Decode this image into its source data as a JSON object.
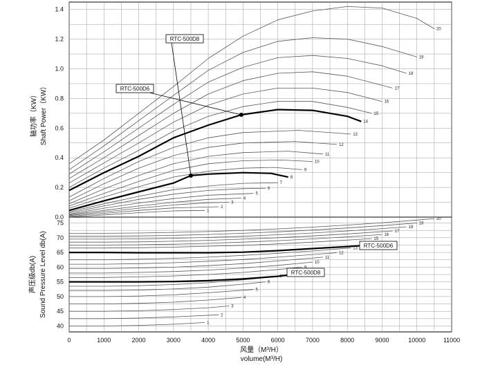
{
  "chart_data": [
    {
      "type": "line",
      "title": "",
      "ylabel": "轴功率（KW）",
      "ylabel2": "Shaft Power（KW）",
      "xlim": [
        0,
        11000
      ],
      "ylim": [
        0,
        1.45
      ],
      "yticks": [
        0.0,
        0.2,
        0.4,
        0.6,
        0.8,
        1.0,
        1.2,
        1.4
      ],
      "yticklabels": [
        "0.0",
        "0.2",
        "0.4",
        "0.6",
        "0.8",
        "1.0",
        "1.2",
        "1.4"
      ],
      "grid": true,
      "highlight": [
        "8",
        "14"
      ],
      "callouts": [
        {
          "text": "RTC-500D8",
          "point": [
            3500,
            0.28
          ]
        },
        {
          "text": "RTC-500D6",
          "point": [
            4950,
            0.69
          ]
        }
      ],
      "series": [
        {
          "name": "1",
          "x": [
            0,
            1000,
            2000,
            3000,
            3900
          ],
          "y": [
            0.0,
            0.015,
            0.03,
            0.042,
            0.045
          ]
        },
        {
          "name": "2",
          "x": [
            0,
            1000,
            2000,
            3000,
            4300
          ],
          "y": [
            0.005,
            0.025,
            0.045,
            0.062,
            0.07
          ]
        },
        {
          "name": "3",
          "x": [
            0,
            1000,
            2000,
            3000,
            4000,
            4600
          ],
          "y": [
            0.01,
            0.035,
            0.06,
            0.082,
            0.097,
            0.1
          ]
        },
        {
          "name": "4",
          "x": [
            0,
            1000,
            2000,
            3000,
            4000,
            4950
          ],
          "y": [
            0.015,
            0.045,
            0.075,
            0.1,
            0.12,
            0.128
          ]
        },
        {
          "name": "5",
          "x": [
            0,
            1000,
            2000,
            3000,
            4000,
            5300
          ],
          "y": [
            0.02,
            0.06,
            0.095,
            0.125,
            0.148,
            0.16
          ]
        },
        {
          "name": "6",
          "x": [
            0,
            1000,
            2000,
            3000,
            4000,
            5000,
            5650
          ],
          "y": [
            0.028,
            0.075,
            0.12,
            0.155,
            0.18,
            0.192,
            0.195
          ]
        },
        {
          "name": "7",
          "x": [
            0,
            1000,
            2000,
            3000,
            4000,
            5000,
            6000
          ],
          "y": [
            0.035,
            0.09,
            0.14,
            0.185,
            0.21,
            0.228,
            0.232
          ]
        },
        {
          "name": "8",
          "x": [
            0,
            1000,
            2000,
            3000,
            3500,
            4000,
            5000,
            5800,
            6300
          ],
          "y": [
            0.045,
            0.11,
            0.17,
            0.23,
            0.28,
            0.29,
            0.3,
            0.295,
            0.27
          ]
        },
        {
          "name": "9",
          "x": [
            0,
            1000,
            2000,
            3000,
            4000,
            5000,
            5900,
            6700
          ],
          "y": [
            0.06,
            0.135,
            0.205,
            0.27,
            0.31,
            0.33,
            0.335,
            0.32
          ]
        },
        {
          "name": "10",
          "x": [
            0,
            1000,
            2000,
            3000,
            4000,
            5000,
            6100,
            7000
          ],
          "y": [
            0.075,
            0.16,
            0.24,
            0.315,
            0.36,
            0.38,
            0.385,
            0.375
          ]
        },
        {
          "name": "11",
          "x": [
            0,
            1000,
            2000,
            3000,
            4000,
            5000,
            6300,
            7300
          ],
          "y": [
            0.09,
            0.19,
            0.28,
            0.36,
            0.41,
            0.435,
            0.445,
            0.425
          ]
        },
        {
          "name": "12",
          "x": [
            0,
            1000,
            2000,
            3000,
            4000,
            5000,
            6500,
            7700
          ],
          "y": [
            0.11,
            0.225,
            0.33,
            0.415,
            0.47,
            0.5,
            0.51,
            0.49
          ]
        },
        {
          "name": "13",
          "x": [
            0,
            1000,
            2000,
            3000,
            4000,
            5000,
            6600,
            8100
          ],
          "y": [
            0.135,
            0.26,
            0.375,
            0.47,
            0.535,
            0.57,
            0.585,
            0.56
          ]
        },
        {
          "name": "14",
          "x": [
            0,
            1000,
            2000,
            3000,
            4000,
            4950,
            6000,
            7000,
            8000,
            8400
          ],
          "y": [
            0.18,
            0.3,
            0.41,
            0.535,
            0.62,
            0.69,
            0.725,
            0.72,
            0.68,
            0.645
          ]
        },
        {
          "name": "15",
          "x": [
            0,
            1000,
            2000,
            3000,
            4000,
            5000,
            6000,
            7000,
            8000,
            8700
          ],
          "y": [
            0.2,
            0.33,
            0.45,
            0.58,
            0.68,
            0.745,
            0.78,
            0.78,
            0.74,
            0.7
          ]
        },
        {
          "name": "16",
          "x": [
            0,
            1000,
            2000,
            3000,
            4000,
            5000,
            6000,
            7000,
            8000,
            9000
          ],
          "y": [
            0.23,
            0.365,
            0.5,
            0.64,
            0.755,
            0.83,
            0.87,
            0.87,
            0.84,
            0.78
          ]
        },
        {
          "name": "17",
          "x": [
            0,
            1000,
            2000,
            3000,
            4000,
            5000,
            6000,
            7000,
            8000,
            9300
          ],
          "y": [
            0.26,
            0.4,
            0.55,
            0.7,
            0.83,
            0.92,
            0.97,
            0.98,
            0.95,
            0.87
          ]
        },
        {
          "name": "18",
          "x": [
            0,
            1000,
            2000,
            3000,
            4000,
            5000,
            6000,
            7000,
            8000,
            9000,
            9700
          ],
          "y": [
            0.29,
            0.44,
            0.6,
            0.76,
            0.91,
            1.01,
            1.075,
            1.09,
            1.07,
            1.02,
            0.97
          ]
        },
        {
          "name": "19",
          "x": [
            0,
            1000,
            2000,
            3000,
            4000,
            5000,
            6000,
            7000,
            8000,
            9000,
            10000
          ],
          "y": [
            0.32,
            0.48,
            0.65,
            0.82,
            0.99,
            1.11,
            1.185,
            1.21,
            1.2,
            1.15,
            1.08
          ]
        },
        {
          "name": "20",
          "x": [
            0,
            1000,
            2000,
            3000,
            4000,
            5000,
            6000,
            7000,
            8000,
            9000,
            10000,
            10500
          ],
          "y": [
            0.36,
            0.52,
            0.7,
            0.88,
            1.07,
            1.22,
            1.33,
            1.39,
            1.42,
            1.41,
            1.34,
            1.27
          ]
        }
      ]
    },
    {
      "type": "line",
      "title": "",
      "xlabel": "风量（M³/H）",
      "xlabel2": "volume(M³/H)",
      "ylabel": "声压级db(A)",
      "ylabel2": "Sound Pressure Level db(A)",
      "xlim": [
        0,
        11000
      ],
      "ylim": [
        38,
        77
      ],
      "xticks": [
        0,
        1000,
        2000,
        3000,
        4000,
        5000,
        6000,
        7000,
        8000,
        9000,
        10000,
        11000
      ],
      "xticklabels": [
        "0",
        "1000",
        "2000",
        "3000",
        "4000",
        "5000",
        "6000",
        "7000",
        "8000",
        "9000",
        "10000",
        "11000"
      ],
      "yticks": [
        40,
        45,
        50,
        55,
        60,
        65,
        70,
        75
      ],
      "yticklabels": [
        "40",
        "45",
        "50",
        "55",
        "60",
        "65",
        "70",
        "75"
      ],
      "grid": true,
      "highlight": [
        "8",
        "14"
      ],
      "callouts": [
        {
          "text": "RTC-500D6",
          "point": [
            8400,
            67.3
          ]
        },
        {
          "text": "RTC-500D8",
          "point": [
            6300,
            57.3
          ]
        }
      ],
      "series": [
        {
          "name": "1",
          "x": [
            0,
            1000,
            2000,
            3000,
            3900
          ],
          "y": [
            40.0,
            40.0,
            40.2,
            40.6,
            41.2
          ]
        },
        {
          "name": "2",
          "x": [
            0,
            1000,
            2000,
            3000,
            4300
          ],
          "y": [
            42.5,
            42.5,
            42.7,
            43.1,
            43.8
          ]
        },
        {
          "name": "3",
          "x": [
            0,
            1000,
            2000,
            3000,
            4000,
            4600
          ],
          "y": [
            45.0,
            45.0,
            45.2,
            45.6,
            46.2,
            46.8
          ]
        },
        {
          "name": "4",
          "x": [
            0,
            1000,
            2000,
            3000,
            4000,
            4950
          ],
          "y": [
            47.5,
            47.5,
            47.7,
            48.1,
            48.8,
            49.7
          ]
        },
        {
          "name": "5",
          "x": [
            0,
            1000,
            2000,
            3000,
            4000,
            5300
          ],
          "y": [
            50.0,
            50.0,
            50.2,
            50.6,
            51.3,
            52.4
          ]
        },
        {
          "name": "6",
          "x": [
            0,
            1000,
            2000,
            3000,
            4000,
            5000,
            5650
          ],
          "y": [
            52.0,
            52.0,
            52.2,
            52.6,
            53.2,
            54.2,
            55.0
          ]
        },
        {
          "name": "7",
          "x": [
            0,
            1000,
            2000,
            3000,
            4000,
            5000,
            6000
          ],
          "y": [
            53.5,
            53.5,
            53.7,
            54.1,
            54.7,
            55.7,
            56.8
          ]
        },
        {
          "name": "8",
          "x": [
            0,
            1000,
            2000,
            3000,
            4000,
            5000,
            6000,
            6300
          ],
          "y": [
            55.0,
            55.0,
            55.0,
            55.1,
            55.4,
            56.0,
            56.9,
            57.3
          ]
        },
        {
          "name": "9",
          "x": [
            0,
            1000,
            2000,
            3000,
            4000,
            5000,
            6000,
            6700
          ],
          "y": [
            56.5,
            56.5,
            56.7,
            57.0,
            57.5,
            58.2,
            59.2,
            60.0
          ]
        },
        {
          "name": "10",
          "x": [
            0,
            1000,
            2000,
            3000,
            4000,
            5000,
            6000,
            7000
          ],
          "y": [
            58.0,
            58.0,
            58.2,
            58.5,
            59.0,
            59.7,
            60.6,
            61.7
          ]
        },
        {
          "name": "11",
          "x": [
            0,
            1000,
            2000,
            3000,
            4000,
            5000,
            6000,
            7300
          ],
          "y": [
            59.5,
            59.5,
            59.7,
            60.0,
            60.5,
            61.2,
            62.1,
            63.4
          ]
        },
        {
          "name": "12",
          "x": [
            0,
            1000,
            2000,
            3000,
            4000,
            5000,
            6000,
            7700
          ],
          "y": [
            61.0,
            61.0,
            61.2,
            61.5,
            62.0,
            62.6,
            63.4,
            64.9
          ]
        },
        {
          "name": "13",
          "x": [
            0,
            1000,
            2000,
            3000,
            4000,
            5000,
            6000,
            7000,
            8100
          ],
          "y": [
            62.5,
            62.5,
            62.7,
            63.0,
            63.4,
            64.0,
            64.7,
            65.5,
            66.5
          ]
        },
        {
          "name": "14",
          "x": [
            0,
            1000,
            2000,
            3000,
            4000,
            5000,
            6000,
            7000,
            8000,
            8400
          ],
          "y": [
            65.0,
            65.0,
            64.9,
            64.9,
            64.9,
            65.1,
            65.6,
            66.3,
            67.0,
            67.3
          ]
        },
        {
          "name": "15",
          "x": [
            0,
            1000,
            2000,
            3000,
            4000,
            5000,
            6000,
            7000,
            8000,
            8700
          ],
          "y": [
            66.5,
            66.5,
            66.6,
            66.8,
            67.1,
            67.4,
            67.9,
            68.5,
            69.2,
            69.7
          ]
        },
        {
          "name": "16",
          "x": [
            0,
            1000,
            2000,
            3000,
            4000,
            5000,
            6000,
            7000,
            8000,
            9000
          ],
          "y": [
            67.5,
            67.5,
            67.6,
            67.8,
            68.1,
            68.5,
            69.0,
            69.6,
            70.3,
            71.1
          ]
        },
        {
          "name": "17",
          "x": [
            0,
            1000,
            2000,
            3000,
            4000,
            5000,
            6000,
            7000,
            8000,
            9300
          ],
          "y": [
            68.5,
            68.5,
            68.6,
            68.8,
            69.1,
            69.5,
            70.0,
            70.6,
            71.3,
            72.3
          ]
        },
        {
          "name": "18",
          "x": [
            0,
            1000,
            2000,
            3000,
            4000,
            5000,
            6000,
            7000,
            8000,
            9000,
            9700
          ],
          "y": [
            69.5,
            69.5,
            69.6,
            69.8,
            70.1,
            70.5,
            71.0,
            71.6,
            72.3,
            73.1,
            73.7
          ]
        },
        {
          "name": "19",
          "x": [
            0,
            1000,
            2000,
            3000,
            4000,
            5000,
            6000,
            7000,
            8000,
            9000,
            10000
          ],
          "y": [
            70.5,
            70.5,
            70.6,
            70.8,
            71.1,
            71.5,
            72.0,
            72.6,
            73.3,
            74.1,
            75.0
          ]
        },
        {
          "name": "20",
          "x": [
            0,
            1000,
            2000,
            3000,
            4000,
            5000,
            6000,
            7000,
            8000,
            9000,
            10000,
            10500
          ],
          "y": [
            71.5,
            71.5,
            71.6,
            71.8,
            72.1,
            72.5,
            73.0,
            73.6,
            74.3,
            75.1,
            76.0,
            76.5
          ]
        }
      ]
    }
  ]
}
